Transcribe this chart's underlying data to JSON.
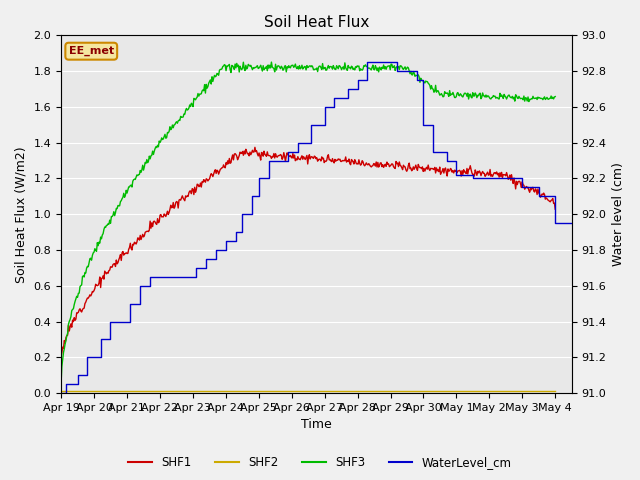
{
  "title": "Soil Heat Flux",
  "ylabel_left": "Soil Heat Flux (W/m2)",
  "ylabel_right": "Water level (cm)",
  "xlabel": "Time",
  "ylim_left": [
    0.0,
    2.0
  ],
  "ylim_right": [
    91.0,
    93.0
  ],
  "plot_bg_color": "#e8e8e8",
  "fig_bg_color": "#f0f0f0",
  "watermark": "EE_met",
  "x_ticks": [
    "Apr 19",
    "Apr 20",
    "Apr 21",
    "Apr 22",
    "Apr 23",
    "Apr 24",
    "Apr 25",
    "Apr 26",
    "Apr 27",
    "Apr 28",
    "Apr 29",
    "Apr 30",
    "May 1",
    "May 2",
    "May 3",
    "May 4"
  ],
  "shf1_color": "#cc0000",
  "shf2_color": "#ccaa00",
  "shf3_color": "#00bb00",
  "wl_color": "#0000cc",
  "legend_labels": [
    "SHF1",
    "SHF2",
    "SHF3",
    "WaterLevel_cm"
  ],
  "grid_color": "white",
  "tick_fontsize": 8,
  "label_fontsize": 9,
  "title_fontsize": 11
}
